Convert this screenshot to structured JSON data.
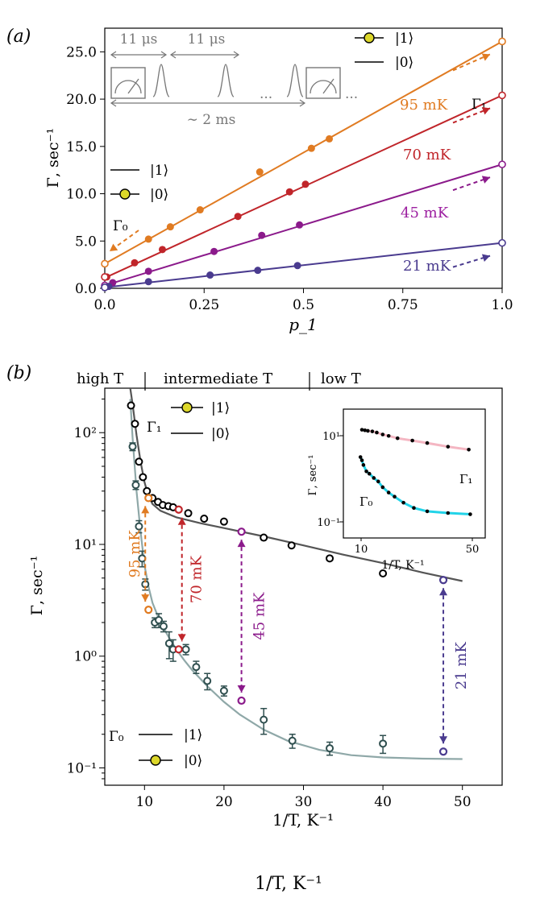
{
  "chart_data": [
    {
      "type": "line",
      "panel_label": "(a)",
      "xlabel": "p_1",
      "ylabel": "Γ, sec⁻¹",
      "xlim": [
        0,
        1
      ],
      "ylim": [
        0,
        27.5
      ],
      "x_ticks": [
        "0.0",
        "0.25",
        "0.5",
        "0.75",
        "1.0"
      ],
      "x_tick_values": [
        0,
        0.25,
        0.5,
        0.75,
        1.0
      ],
      "y_ticks": [
        "0.0",
        "5.0",
        "10.0",
        "15.0",
        "20.0",
        "25.0"
      ],
      "y_tick_values": [
        0,
        5,
        10,
        15,
        20,
        25
      ],
      "series": [
        {
          "name": "95 mK",
          "color": "#e07b22",
          "label_color": "#e07b22",
          "intercept": 2.6,
          "slope": 23.5,
          "points": [
            [
              0.11,
              5.2
            ],
            [
              0.165,
              6.5
            ],
            [
              0.24,
              8.3
            ],
            [
              0.39,
              12.3
            ],
            [
              0.52,
              14.8
            ],
            [
              0.565,
              15.8
            ]
          ],
          "open_points": [
            [
              0.0,
              2.6
            ],
            [
              1.0,
              26.1
            ]
          ]
        },
        {
          "name": "70 mK",
          "color": "#c0252a",
          "label_color": "#c0252a",
          "intercept": 1.1,
          "slope": 19.3,
          "points": [
            [
              0.005,
              1.2
            ],
            [
              0.075,
              2.7
            ],
            [
              0.145,
              4.1
            ],
            [
              0.335,
              7.6
            ],
            [
              0.465,
              10.2
            ],
            [
              0.505,
              11.0
            ]
          ],
          "open_points": [
            [
              0.0,
              1.2
            ],
            [
              1.0,
              20.4
            ]
          ]
        },
        {
          "name": "45 mK",
          "color": "#8b1a8b",
          "label_color": "#9c1fa0",
          "intercept": 0.3,
          "slope": 12.8,
          "points": [
            [
              0.02,
              0.6
            ],
            [
              0.11,
              1.8
            ],
            [
              0.275,
              3.9
            ],
            [
              0.395,
              5.6
            ],
            [
              0.49,
              6.7
            ]
          ],
          "open_points": [
            [
              0.0,
              0.3
            ],
            [
              1.0,
              13.1
            ]
          ]
        },
        {
          "name": "21 mK",
          "color": "#4a3b8f",
          "label_color": "#4a3b8f",
          "intercept": 0.1,
          "slope": 4.7,
          "points": [
            [
              0.01,
              0.2
            ],
            [
              0.11,
              0.7
            ],
            [
              0.265,
              1.4
            ],
            [
              0.385,
              1.9
            ],
            [
              0.485,
              2.4
            ]
          ],
          "open_points": [
            [
              0.0,
              0.1
            ],
            [
              1.0,
              4.8
            ]
          ]
        }
      ],
      "legend_top": {
        "marker_label": "|1⟩",
        "line_label": "|0⟩"
      },
      "legend_left": {
        "line_label": "|1⟩",
        "marker_label": "|0⟩"
      },
      "gamma1_label": "Γ₁",
      "gamma0_label": "Γ₀",
      "inset_sequence": {
        "interval_1": "11 μs",
        "interval_2": "11 μs",
        "dots": "...",
        "total": "∼ 2 ms"
      }
    },
    {
      "type": "scatter",
      "panel_label": "(b)",
      "xlabel": "1/T, K⁻¹",
      "ylabel": "Γ, sec⁻¹",
      "yscale": "log",
      "xlim": [
        5,
        55
      ],
      "ylim": [
        0.07,
        250
      ],
      "x_ticks": [
        "10",
        "20",
        "30",
        "40",
        "50"
      ],
      "x_tick_values": [
        10,
        20,
        30,
        40,
        50
      ],
      "y_ticks": [
        "10⁻¹",
        "10⁰",
        "10¹",
        "10²"
      ],
      "y_tick_values": [
        0.1,
        1,
        10,
        100
      ],
      "regime_labels": [
        "high T",
        "intermediate T",
        "low T"
      ],
      "gamma1_points": [
        [
          8.3,
          175
        ],
        [
          8.8,
          120
        ],
        [
          9.3,
          55
        ],
        [
          9.8,
          40
        ],
        [
          10.3,
          30
        ],
        [
          11,
          26
        ],
        [
          11.7,
          24
        ],
        [
          12.3,
          22.5
        ],
        [
          13,
          22
        ],
        [
          13.6,
          21.5
        ],
        [
          15.5,
          19
        ],
        [
          17.5,
          17
        ],
        [
          20,
          16
        ],
        [
          25,
          11.5
        ],
        [
          28.5,
          9.8
        ],
        [
          33.3,
          7.5
        ],
        [
          40,
          5.5
        ]
      ],
      "gamma1_fit": [
        [
          8.2,
          250
        ],
        [
          8.5,
          180
        ],
        [
          9,
          95
        ],
        [
          9.5,
          55
        ],
        [
          10,
          36
        ],
        [
          10.5,
          27
        ],
        [
          11,
          23
        ],
        [
          12,
          20
        ],
        [
          14,
          17.5
        ],
        [
          17,
          15.5
        ],
        [
          20,
          14
        ],
        [
          25,
          11.8
        ],
        [
          30,
          9.8
        ],
        [
          35,
          8.1
        ],
        [
          40,
          6.8
        ],
        [
          45,
          5.6
        ],
        [
          50,
          4.7
        ]
      ],
      "gamma0_points": [
        [
          8.5,
          75,
          6
        ],
        [
          8.9,
          34,
          3
        ],
        [
          9.3,
          14.5,
          1.8
        ],
        [
          9.7,
          7.5,
          1.2
        ],
        [
          10.1,
          4.4,
          0.5
        ],
        [
          11.3,
          2.0,
          0.2
        ],
        [
          11.8,
          2.1,
          0.3
        ],
        [
          12.4,
          1.85,
          0.2
        ],
        [
          13.1,
          1.3,
          0.35
        ],
        [
          13.6,
          1.15,
          0.25
        ],
        [
          15.2,
          1.15,
          0.12
        ],
        [
          16.5,
          0.8,
          0.1
        ],
        [
          17.9,
          0.6,
          0.1
        ],
        [
          20,
          0.49,
          0.05
        ],
        [
          25,
          0.27,
          0.07
        ],
        [
          28.6,
          0.175,
          0.025
        ],
        [
          33.3,
          0.15,
          0.02
        ],
        [
          40,
          0.165,
          0.03
        ]
      ],
      "gamma0_fit": [
        [
          8.2,
          200
        ],
        [
          8.5,
          90
        ],
        [
          9,
          30
        ],
        [
          9.5,
          13
        ],
        [
          10,
          6.5
        ],
        [
          10.5,
          4.2
        ],
        [
          11,
          3.0
        ],
        [
          12,
          2.0
        ],
        [
          13,
          1.5
        ],
        [
          14,
          1.15
        ],
        [
          15,
          0.92
        ],
        [
          16,
          0.75
        ],
        [
          18,
          0.53
        ],
        [
          20,
          0.39
        ],
        [
          22,
          0.3
        ],
        [
          25,
          0.22
        ],
        [
          28,
          0.175
        ],
        [
          32,
          0.145
        ],
        [
          36,
          0.13
        ],
        [
          40,
          0.124
        ],
        [
          45,
          0.121
        ],
        [
          50,
          0.12
        ]
      ],
      "highlight_pairs": [
        {
          "name": "95 mK",
          "x": 10.5,
          "g1": 26,
          "g0": 2.6,
          "color": "#e07b22"
        },
        {
          "name": "70 mK",
          "x": 14.3,
          "g1": 20.5,
          "g0": 1.15,
          "color": "#c0252a"
        },
        {
          "name": "45 mK",
          "x": 22.2,
          "g1": 13,
          "g0": 0.4,
          "color": "#8b1a8b"
        },
        {
          "name": "21 mK",
          "x": 47.6,
          "g1": 4.8,
          "g0": 0.14,
          "color": "#4a3b8f"
        }
      ],
      "legend_gamma1": {
        "label": "Γ₁",
        "marker_label": "|1⟩",
        "line_label": "|0⟩"
      },
      "legend_gamma0": {
        "label": "Γ₀",
        "line_label": "|1⟩",
        "marker_label": "|0⟩"
      },
      "inset": {
        "xlabel": "1/T, K⁻¹",
        "ylabel": "Γ, sec⁻¹",
        "x_ticks": [
          "10",
          "50"
        ],
        "y_ticks": [
          "10¹",
          "10⁻¹"
        ],
        "gamma1_label": "Γ₁",
        "gamma0_label": "Γ₀",
        "gamma1_points": [
          [
            11,
            17
          ],
          [
            12,
            16.5
          ],
          [
            13,
            16
          ],
          [
            14.5,
            15.5
          ],
          [
            16,
            14.5
          ],
          [
            18,
            13
          ],
          [
            20,
            12
          ],
          [
            23,
            10.5
          ],
          [
            28,
            9.2
          ],
          [
            33,
            8
          ],
          [
            40,
            6.5
          ],
          [
            47,
            5.5
          ]
        ],
        "gamma0_points": [
          [
            10.5,
            3.6
          ],
          [
            11,
            3.0
          ],
          [
            11.5,
            2.3
          ],
          [
            12.5,
            1.6
          ],
          [
            13.5,
            1.4
          ],
          [
            15,
            1.1
          ],
          [
            16.5,
            0.9
          ],
          [
            18,
            0.65
          ],
          [
            20,
            0.48
          ],
          [
            22,
            0.38
          ],
          [
            25,
            0.27
          ],
          [
            28.5,
            0.2
          ],
          [
            33,
            0.165
          ],
          [
            40,
            0.15
          ],
          [
            47.5,
            0.14
          ]
        ],
        "gamma1_color": "#f4b6c2",
        "gamma0_color": "#22d3e8"
      }
    }
  ],
  "footer_label": "1/T, K⁻¹"
}
